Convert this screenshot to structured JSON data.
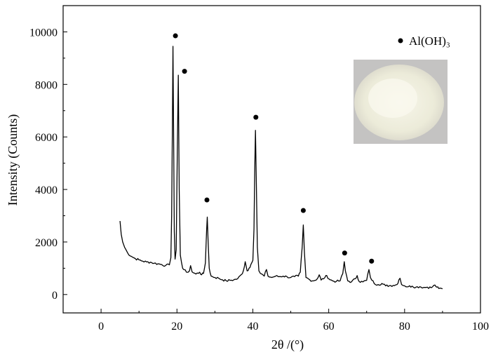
{
  "chart_data": {
    "type": "line",
    "title": "",
    "xlabel": "2θ /(°)",
    "ylabel": "Intensity (Counts)",
    "xlim": [
      -10,
      100
    ],
    "ylim": [
      -700,
      11000
    ],
    "xticks": [
      0,
      20,
      40,
      60,
      80,
      100
    ],
    "yticks": [
      0,
      2000,
      4000,
      6000,
      8000,
      10000
    ],
    "grid": false,
    "legend": {
      "position": "top-right",
      "entries": [
        {
          "marker": "circle",
          "label": "Al(OH)₃"
        }
      ]
    },
    "inset": {
      "kind": "photo",
      "subject": "white powder sample"
    },
    "series": [
      {
        "points": [
          [
            5.0,
            2800
          ],
          [
            5.3,
            2300
          ],
          [
            5.7,
            2000
          ],
          [
            6.2,
            1800
          ],
          [
            7,
            1580
          ],
          [
            8,
            1450
          ],
          [
            9,
            1370
          ],
          [
            10,
            1320
          ],
          [
            11,
            1270
          ],
          [
            12,
            1240
          ],
          [
            13,
            1230
          ],
          [
            14,
            1190
          ],
          [
            15,
            1170
          ],
          [
            16,
            1140
          ],
          [
            17,
            1100
          ],
          [
            18,
            1130
          ],
          [
            18.4,
            1400
          ],
          [
            18.6,
            3000
          ],
          [
            18.8,
            6500
          ],
          [
            18.95,
            9450
          ],
          [
            19.1,
            6500
          ],
          [
            19.3,
            2400
          ],
          [
            19.5,
            1350
          ],
          [
            19.8,
            1700
          ],
          [
            20.1,
            5500
          ],
          [
            20.35,
            8350
          ],
          [
            20.6,
            4000
          ],
          [
            20.9,
            1500
          ],
          [
            21.5,
            1000
          ],
          [
            22.5,
            850
          ],
          [
            23.3,
            900
          ],
          [
            23.6,
            1100
          ],
          [
            24,
            860
          ],
          [
            25,
            780
          ],
          [
            26,
            850
          ],
          [
            26.5,
            750
          ],
          [
            27,
            800
          ],
          [
            27.5,
            1200
          ],
          [
            27.8,
            2400
          ],
          [
            28.0,
            2950
          ],
          [
            28.2,
            2100
          ],
          [
            28.5,
            1000
          ],
          [
            29,
            700
          ],
          [
            30,
            650
          ],
          [
            31,
            620
          ],
          [
            32,
            560
          ],
          [
            33,
            520
          ],
          [
            34,
            540
          ],
          [
            35,
            560
          ],
          [
            36,
            600
          ],
          [
            37,
            760
          ],
          [
            37.5,
            900
          ],
          [
            38,
            1250
          ],
          [
            38.5,
            900
          ],
          [
            39,
            1000
          ],
          [
            39.5,
            1150
          ],
          [
            40,
            1300
          ],
          [
            40.3,
            2500
          ],
          [
            40.5,
            4800
          ],
          [
            40.7,
            6250
          ],
          [
            40.9,
            4500
          ],
          [
            41.2,
            1800
          ],
          [
            41.6,
            900
          ],
          [
            42,
            800
          ],
          [
            43,
            700
          ],
          [
            43.6,
            950
          ],
          [
            44,
            700
          ],
          [
            45,
            650
          ],
          [
            46,
            700
          ],
          [
            47,
            680
          ],
          [
            48,
            700
          ],
          [
            49,
            680
          ],
          [
            50,
            650
          ],
          [
            51,
            680
          ],
          [
            52,
            700
          ],
          [
            52.5,
            850
          ],
          [
            53,
            1800
          ],
          [
            53.3,
            2650
          ],
          [
            53.6,
            1600
          ],
          [
            54,
            650
          ],
          [
            55,
            560
          ],
          [
            56,
            520
          ],
          [
            57,
            600
          ],
          [
            57.5,
            750
          ],
          [
            58,
            550
          ],
          [
            59,
            650
          ],
          [
            59.5,
            720
          ],
          [
            60,
            600
          ],
          [
            61,
            520
          ],
          [
            62,
            500
          ],
          [
            63,
            520
          ],
          [
            63.7,
            800
          ],
          [
            64.1,
            1250
          ],
          [
            64.4,
            900
          ],
          [
            65,
            520
          ],
          [
            66,
            480
          ],
          [
            67,
            600
          ],
          [
            67.5,
            720
          ],
          [
            68,
            500
          ],
          [
            69,
            480
          ],
          [
            70,
            540
          ],
          [
            70.6,
            950
          ],
          [
            71,
            650
          ],
          [
            72,
            420
          ],
          [
            73,
            380
          ],
          [
            74,
            420
          ],
          [
            75,
            330
          ],
          [
            76,
            340
          ],
          [
            77,
            350
          ],
          [
            78,
            380
          ],
          [
            78.5,
            560
          ],
          [
            78.8,
            620
          ],
          [
            79.2,
            380
          ],
          [
            80,
            330
          ],
          [
            81,
            300
          ],
          [
            82,
            320
          ],
          [
            83,
            280
          ],
          [
            84,
            300
          ],
          [
            85,
            270
          ],
          [
            86,
            280
          ],
          [
            87,
            260
          ],
          [
            88,
            360
          ],
          [
            88.5,
            280
          ],
          [
            89,
            230
          ],
          [
            90,
            220
          ]
        ]
      }
    ],
    "peak_markers": [
      [
        19.6,
        9850
      ],
      [
        22.0,
        8500
      ],
      [
        27.9,
        3600
      ],
      [
        40.8,
        6750
      ],
      [
        53.3,
        3200
      ],
      [
        64.2,
        1580
      ],
      [
        71.3,
        1270
      ]
    ]
  }
}
